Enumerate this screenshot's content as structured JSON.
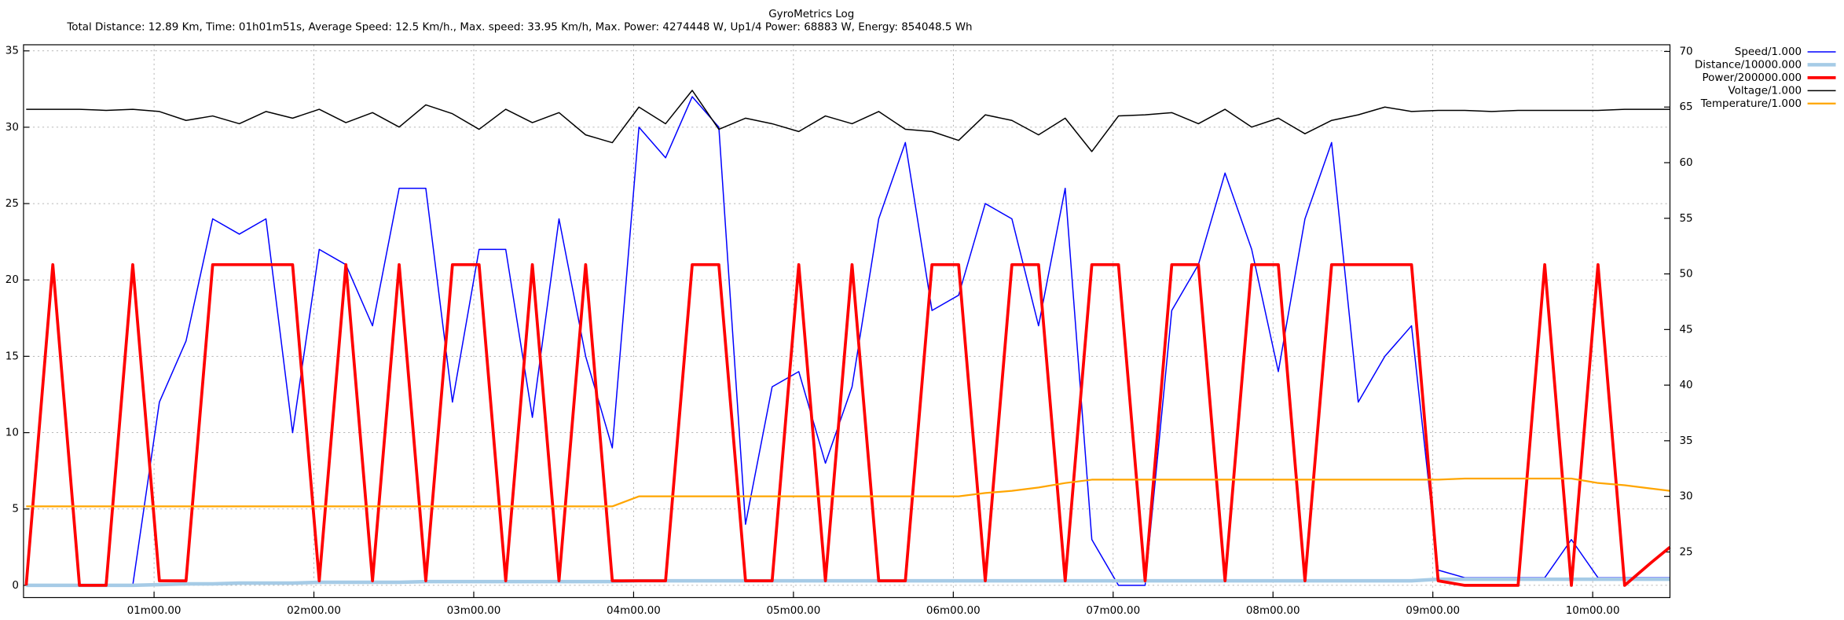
{
  "chart_data": {
    "type": "line",
    "title": "GyroMetrics Log",
    "subtitle": "Total Distance: 12.89 Km, Time: 01h01m51s, Average Speed: 12.5 Km/h., Max. speed: 33.95 Km/h, Max. Power: 4274448 W, Up1/4 Power: 68883 W, Energy: 854048.5 Wh",
    "x": [
      12,
      22,
      32,
      42,
      52,
      62,
      72,
      82,
      92,
      102,
      112,
      122,
      132,
      142,
      152,
      162,
      172,
      182,
      192,
      202,
      212,
      222,
      232,
      242,
      252,
      262,
      272,
      282,
      292,
      302,
      312,
      322,
      332,
      342,
      352,
      362,
      372,
      382,
      392,
      402,
      412,
      422,
      432,
      442,
      452,
      462,
      472,
      482,
      492,
      502,
      512,
      522,
      532,
      542,
      552,
      562,
      572,
      582,
      592,
      602,
      612,
      622,
      629
    ],
    "xlim": [
      11,
      629
    ],
    "xticks": [
      {
        "value": 60,
        "label": "01m00.00"
      },
      {
        "value": 120,
        "label": "02m00.00"
      },
      {
        "value": 180,
        "label": "03m00.00"
      },
      {
        "value": 240,
        "label": "04m00.00"
      },
      {
        "value": 300,
        "label": "05m00.00"
      },
      {
        "value": 360,
        "label": "06m00.00"
      },
      {
        "value": 420,
        "label": "07m00.00"
      },
      {
        "value": 480,
        "label": "08m00.00"
      },
      {
        "value": 540,
        "label": "09m00.00"
      },
      {
        "value": 600,
        "label": "10m00.00"
      }
    ],
    "ylim": [
      -0.8,
      35.4
    ],
    "yticks": [
      0,
      5,
      10,
      15,
      20,
      25,
      30,
      35
    ],
    "y2lim": [
      20.9,
      70.6
    ],
    "y2ticks": [
      25,
      30,
      35,
      40,
      45,
      50,
      55,
      60,
      65,
      70
    ],
    "grid": true,
    "legend": "outside-top-right",
    "series": [
      {
        "name": "Speed/1.000",
        "color": "#0000ff",
        "width": 1,
        "values": [
          0,
          0,
          0,
          0,
          0,
          12,
          16,
          24,
          23,
          24,
          10,
          22,
          21,
          17,
          26,
          26,
          12,
          22,
          22,
          11,
          24,
          15,
          9,
          30,
          28,
          32,
          30,
          4,
          13,
          14,
          8,
          13,
          24,
          29,
          18,
          19,
          25,
          24,
          17,
          26,
          3,
          0,
          0,
          18,
          21,
          27,
          22,
          14,
          24,
          29,
          12,
          15,
          17,
          1,
          0.5,
          0.5,
          0.5,
          0.5,
          3,
          0.5,
          0.5,
          0.5,
          0.5
        ]
      },
      {
        "name": "Distance/10000.000",
        "color": "#a6cbe6",
        "width": 3,
        "values": [
          0,
          0,
          0,
          0,
          0,
          0.05,
          0.1,
          0.1,
          0.15,
          0.15,
          0.15,
          0.2,
          0.2,
          0.2,
          0.2,
          0.25,
          0.25,
          0.25,
          0.25,
          0.25,
          0.25,
          0.25,
          0.25,
          0.3,
          0.3,
          0.3,
          0.3,
          0.3,
          0.3,
          0.3,
          0.3,
          0.3,
          0.3,
          0.3,
          0.3,
          0.3,
          0.3,
          0.3,
          0.3,
          0.3,
          0.3,
          0.3,
          0.3,
          0.3,
          0.3,
          0.3,
          0.3,
          0.3,
          0.3,
          0.3,
          0.3,
          0.3,
          0.3,
          0.4,
          0.4,
          0.4,
          0.4,
          0.4,
          0.4,
          0.4,
          0.4,
          0.4,
          0.4
        ]
      },
      {
        "name": "Power/200000.000",
        "color": "#ff0000",
        "width": 2.5,
        "values": [
          0,
          21,
          0,
          0,
          21,
          0.3,
          0.3,
          21,
          21,
          21,
          21,
          0.3,
          21,
          0.3,
          21,
          0.3,
          21,
          21,
          0.3,
          21,
          0.3,
          21,
          0.3,
          0.3,
          0.3,
          21,
          21,
          0.3,
          0.3,
          21,
          0.3,
          21,
          0.3,
          0.3,
          21,
          21,
          0.3,
          21,
          21,
          0.3,
          21,
          21,
          0.3,
          21,
          21,
          0.3,
          21,
          21,
          0.3,
          21,
          21,
          21,
          21,
          0.3,
          0,
          0,
          0,
          21,
          0,
          21,
          0,
          1.5,
          2.5
        ]
      },
      {
        "name": "Voltage/1.000",
        "color": "#000000",
        "width": 1,
        "axis": "y2",
        "values": [
          64.8,
          64.8,
          64.8,
          64.7,
          64.8,
          64.6,
          63.8,
          64.2,
          63.5,
          64.6,
          64.0,
          64.8,
          63.6,
          64.5,
          63.2,
          65.2,
          64.4,
          63.0,
          64.8,
          63.6,
          64.5,
          62.5,
          61.8,
          65.0,
          63.5,
          66.5,
          63.0,
          64.0,
          63.5,
          62.8,
          64.2,
          63.5,
          64.6,
          63.0,
          62.8,
          62.0,
          64.3,
          63.8,
          62.5,
          64.0,
          61.0,
          64.2,
          64.3,
          64.5,
          63.5,
          64.8,
          63.2,
          64.0,
          62.6,
          63.8,
          64.3,
          65.0,
          64.6,
          64.7,
          64.7,
          64.6,
          64.7,
          64.7,
          64.7,
          64.7,
          64.8,
          64.8,
          64.8
        ]
      },
      {
        "name": "Temperature/1.000",
        "color": "#ffa500",
        "width": 1.5,
        "axis": "y2",
        "values": [
          29.1,
          29.1,
          29.1,
          29.1,
          29.1,
          29.1,
          29.1,
          29.1,
          29.1,
          29.1,
          29.1,
          29.1,
          29.1,
          29.1,
          29.1,
          29.1,
          29.1,
          29.1,
          29.1,
          29.1,
          29.1,
          29.1,
          29.1,
          30.0,
          30.0,
          30.0,
          30.0,
          30.0,
          30.0,
          30.0,
          30.0,
          30.0,
          30.0,
          30.0,
          30.0,
          30.0,
          30.3,
          30.5,
          30.8,
          31.2,
          31.5,
          31.5,
          31.5,
          31.5,
          31.5,
          31.5,
          31.5,
          31.5,
          31.5,
          31.5,
          31.5,
          31.5,
          31.5,
          31.5,
          31.6,
          31.6,
          31.6,
          31.6,
          31.6,
          31.2,
          31.0,
          30.7,
          30.5
        ]
      }
    ]
  }
}
